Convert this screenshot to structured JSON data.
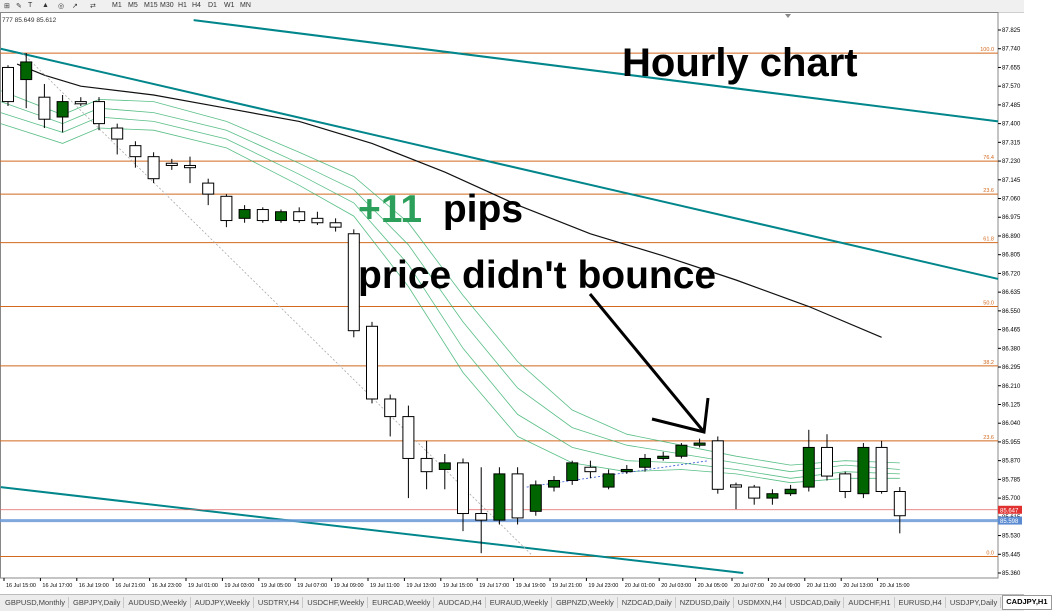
{
  "toolbar": {
    "timeframes": [
      "M1",
      "M5",
      "M15",
      "M30",
      "H1",
      "H4",
      "D1",
      "W1",
      "MN"
    ],
    "info": "777 85.649 85.612"
  },
  "annotations": {
    "heading": "Hourly chart",
    "pips_value": "+11",
    "pips_unit": "pips",
    "subtitle": "price didn't bounce"
  },
  "colors": {
    "bull": "#006400",
    "bear": "#ffffff",
    "candle_outline": "#000000",
    "fib": "#d2691e",
    "channel": "#00868b",
    "ma": "#3cb371",
    "annotation_green": "#2ca05a",
    "bid_line": "#6a9ad8"
  },
  "tabs": [
    "GBPUSD,Monthly",
    "GBPJPY,Daily",
    "AUDUSD,Weekly",
    "AUDJPY,Weekly",
    "USDTRY,H4",
    "USDCHF,Weekly",
    "EURCAD,Weekly",
    "AUDCAD,H4",
    "EURAUD,Weekly",
    "GBPNZD,Weekly",
    "NZDCAD,Daily",
    "NZDUSD,Daily",
    "USDMXN,H4",
    "USDCAD,Daily",
    "AUDCHF,H1",
    "EURUSD,H4",
    "USDJPY,Daily",
    "CADJPY,H1"
  ],
  "active_tab": "CADJPY,H1",
  "chart_data": {
    "type": "candlestick",
    "symbol": "CADJPY",
    "timeframe": "H1",
    "y_axis": {
      "range": [
        85.36,
        87.825
      ],
      "ticks": [
        "87.825",
        "87.740",
        "87.655",
        "87.570",
        "87.485",
        "87.400",
        "87.315",
        "87.230",
        "87.145",
        "87.060",
        "86.975",
        "86.890",
        "86.805",
        "86.720",
        "86.635",
        "86.550",
        "86.465",
        "86.380",
        "86.295",
        "86.210",
        "86.125",
        "86.040",
        "85.955",
        "85.870",
        "85.785",
        "85.700",
        "85.615",
        "85.530",
        "85.445",
        "85.360"
      ]
    },
    "x_axis": {
      "ticks": [
        "16 Jul 15:00",
        "16 Jul 17:00",
        "16 Jul 19:00",
        "16 Jul 21:00",
        "16 Jul 23:00",
        "19 Jul 01:00",
        "19 Jul 03:00",
        "19 Jul 05:00",
        "19 Jul 07:00",
        "19 Jul 09:00",
        "19 Jul 11:00",
        "19 Jul 13:00",
        "19 Jul 15:00",
        "19 Jul 17:00",
        "19 Jul 19:00",
        "19 Jul 21:00",
        "19 Jul 23:00",
        "20 Jul 01:00",
        "20 Jul 03:00",
        "20 Jul 05:00",
        "20 Jul 07:00",
        "20 Jul 09:00",
        "20 Jul 11:00",
        "20 Jul 13:00",
        "20 Jul 15:00"
      ]
    },
    "candles": [
      {
        "o": 87.655,
        "h": 87.665,
        "l": 87.48,
        "c": 87.5
      },
      {
        "o": 87.6,
        "h": 87.72,
        "l": 87.47,
        "c": 87.68
      },
      {
        "o": 87.52,
        "h": 87.58,
        "l": 87.38,
        "c": 87.42
      },
      {
        "o": 87.43,
        "h": 87.53,
        "l": 87.36,
        "c": 87.5
      },
      {
        "o": 87.5,
        "h": 87.52,
        "l": 87.48,
        "c": 87.49
      },
      {
        "o": 87.5,
        "h": 87.52,
        "l": 87.37,
        "c": 87.4
      },
      {
        "o": 87.38,
        "h": 87.4,
        "l": 87.26,
        "c": 87.33
      },
      {
        "o": 87.3,
        "h": 87.32,
        "l": 87.2,
        "c": 87.25
      },
      {
        "o": 87.25,
        "h": 87.27,
        "l": 87.13,
        "c": 87.15
      },
      {
        "o": 87.22,
        "h": 87.24,
        "l": 87.19,
        "c": 87.21
      },
      {
        "o": 87.21,
        "h": 87.25,
        "l": 87.13,
        "c": 87.2
      },
      {
        "o": 87.13,
        "h": 87.15,
        "l": 87.03,
        "c": 87.08
      },
      {
        "o": 87.07,
        "h": 87.08,
        "l": 86.93,
        "c": 86.96
      },
      {
        "o": 86.97,
        "h": 87.03,
        "l": 86.95,
        "c": 87.01
      },
      {
        "o": 87.01,
        "h": 87.02,
        "l": 86.95,
        "c": 86.96
      },
      {
        "o": 86.96,
        "h": 87.01,
        "l": 86.95,
        "c": 87.0
      },
      {
        "o": 87.0,
        "h": 87.02,
        "l": 86.95,
        "c": 86.96
      },
      {
        "o": 86.97,
        "h": 87.0,
        "l": 86.94,
        "c": 86.95
      },
      {
        "o": 86.95,
        "h": 86.97,
        "l": 86.91,
        "c": 86.93
      },
      {
        "o": 86.9,
        "h": 86.92,
        "l": 86.43,
        "c": 86.46
      },
      {
        "o": 86.48,
        "h": 86.5,
        "l": 86.13,
        "c": 86.15
      },
      {
        "o": 86.15,
        "h": 86.17,
        "l": 85.98,
        "c": 86.07
      },
      {
        "o": 86.07,
        "h": 86.12,
        "l": 85.7,
        "c": 85.88
      },
      {
        "o": 85.88,
        "h": 85.96,
        "l": 85.74,
        "c": 85.82
      },
      {
        "o": 85.83,
        "h": 85.9,
        "l": 85.74,
        "c": 85.86
      },
      {
        "o": 85.86,
        "h": 85.88,
        "l": 85.55,
        "c": 85.63
      },
      {
        "o": 85.63,
        "h": 85.84,
        "l": 85.45,
        "c": 85.6
      },
      {
        "o": 85.6,
        "h": 85.84,
        "l": 85.58,
        "c": 85.81
      },
      {
        "o": 85.81,
        "h": 85.84,
        "l": 85.58,
        "c": 85.61
      },
      {
        "o": 85.64,
        "h": 85.78,
        "l": 85.62,
        "c": 85.76
      },
      {
        "o": 85.75,
        "h": 85.8,
        "l": 85.73,
        "c": 85.78
      },
      {
        "o": 85.78,
        "h": 85.87,
        "l": 85.76,
        "c": 85.86
      },
      {
        "o": 85.84,
        "h": 85.87,
        "l": 85.79,
        "c": 85.82
      },
      {
        "o": 85.75,
        "h": 85.83,
        "l": 85.74,
        "c": 85.81
      },
      {
        "o": 85.82,
        "h": 85.85,
        "l": 85.81,
        "c": 85.83
      },
      {
        "o": 85.84,
        "h": 85.9,
        "l": 85.82,
        "c": 85.88
      },
      {
        "o": 85.88,
        "h": 85.91,
        "l": 85.87,
        "c": 85.89
      },
      {
        "o": 85.89,
        "h": 85.95,
        "l": 85.88,
        "c": 85.94
      },
      {
        "o": 85.94,
        "h": 85.97,
        "l": 85.93,
        "c": 85.95
      },
      {
        "o": 85.96,
        "h": 85.98,
        "l": 85.72,
        "c": 85.74
      },
      {
        "o": 85.76,
        "h": 85.77,
        "l": 85.65,
        "c": 85.75
      },
      {
        "o": 85.75,
        "h": 85.76,
        "l": 85.67,
        "c": 85.7
      },
      {
        "o": 85.7,
        "h": 85.74,
        "l": 85.67,
        "c": 85.72
      },
      {
        "o": 85.72,
        "h": 85.76,
        "l": 85.71,
        "c": 85.74
      },
      {
        "o": 85.75,
        "h": 86.01,
        "l": 85.73,
        "c": 85.93
      },
      {
        "o": 85.93,
        "h": 85.99,
        "l": 85.78,
        "c": 85.8
      },
      {
        "o": 85.81,
        "h": 85.82,
        "l": 85.7,
        "c": 85.73
      },
      {
        "o": 85.72,
        "h": 85.95,
        "l": 85.7,
        "c": 85.93
      },
      {
        "o": 85.93,
        "h": 85.96,
        "l": 85.72,
        "c": 85.73
      },
      {
        "o": 85.73,
        "h": 85.75,
        "l": 85.54,
        "c": 85.62
      }
    ],
    "fib_levels": [
      {
        "label": "100.0",
        "price": 87.72
      },
      {
        "label": "76.4",
        "price": 87.23
      },
      {
        "label": "23.6",
        "price": 87.08
      },
      {
        "label": "61.8",
        "price": 86.86
      },
      {
        "label": "50.0",
        "price": 86.57
      },
      {
        "label": "38.2",
        "price": 86.3
      },
      {
        "label": "23.6",
        "price": 85.96
      },
      {
        "label": "0.0",
        "price": 85.435
      }
    ],
    "price_labels": [
      {
        "price": 85.647,
        "text": "85.647",
        "bg": "#e03030"
      },
      {
        "price": 85.598,
        "text": "85.598",
        "bg": "#5a8ad0"
      }
    ]
  }
}
